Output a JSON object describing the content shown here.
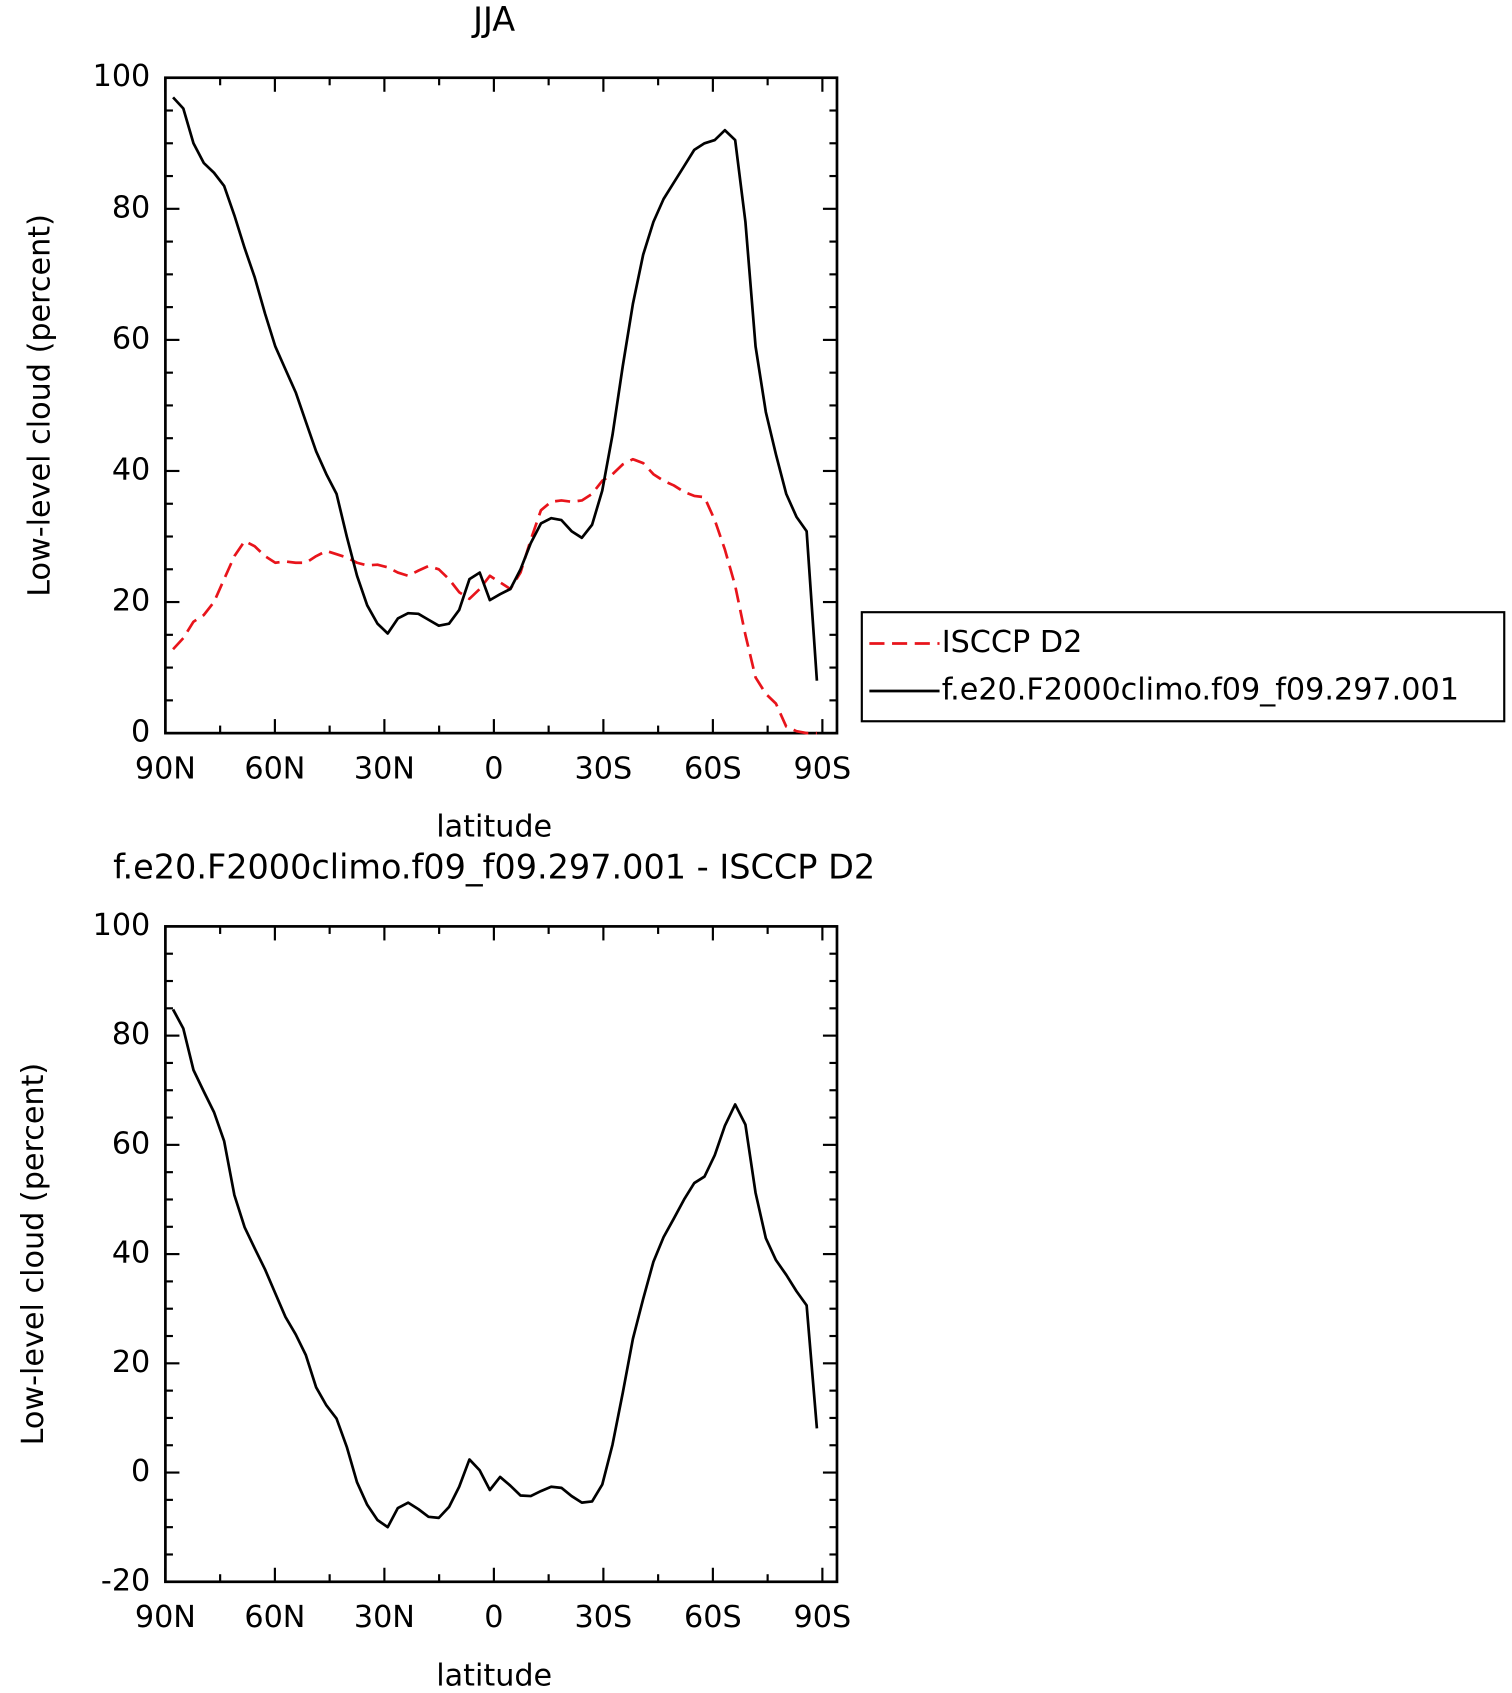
{
  "chart_data": [
    {
      "type": "line",
      "title": "JJA",
      "xlabel": "latitude",
      "ylabel": "Low-level cloud (percent)",
      "legend": "outside right",
      "x": [
        87.9,
        85.1,
        82.3,
        79.5,
        76.7,
        73.9,
        71.1,
        68.3,
        65.5,
        62.7,
        59.9,
        57.1,
        54.3,
        51.5,
        48.7,
        45.9,
        43.1,
        40.3,
        37.5,
        34.7,
        31.9,
        29.1,
        26.3,
        23.5,
        20.7,
        17.9,
        15.1,
        12.3,
        9.5,
        6.7,
        3.9,
        1.1,
        -1.7,
        -4.5,
        -7.3,
        -10.1,
        -12.9,
        -15.7,
        -18.5,
        -21.3,
        -24.1,
        -26.9,
        -29.7,
        -32.5,
        -35.3,
        -38.1,
        -40.9,
        -43.7,
        -46.5,
        -49.3,
        -52.1,
        -54.9,
        -57.7,
        -60.5,
        -63.3,
        -66.1,
        -68.9,
        -71.7,
        -74.5,
        -77.3,
        -80.1,
        -82.9,
        -85.7,
        -88.5
      ],
      "series": [
        {
          "name": "ISCCP D2",
          "color": "#e8141b",
          "line_style": "dashed",
          "values": [
            12.8,
            14.5,
            17,
            18,
            20,
            23.5,
            27,
            29.3,
            28.5,
            27,
            26,
            26.2,
            26,
            26,
            27,
            27.8,
            27.3,
            26.8,
            26,
            25.6,
            25.7,
            25.3,
            24.5,
            24,
            24.8,
            25.5,
            25,
            23.5,
            21.5,
            20.5,
            22,
            24,
            23,
            22,
            24.5,
            29.5,
            34,
            35.3,
            35.5,
            35.3,
            35.5,
            36.5,
            38.5,
            39.5,
            41,
            41.8,
            41.2,
            39.5,
            38.5,
            37.8,
            36.8,
            36.2,
            36,
            32.5,
            28,
            22.5,
            15,
            8.5,
            6,
            4.5,
            1,
            0.3,
            0,
            0
          ]
        },
        {
          "name": "f.e20.F2000climo.f09_f09.297.001",
          "color": "#000000",
          "line_style": "solid",
          "values": [
            97,
            95.3,
            90,
            87,
            85.5,
            83.5,
            79,
            74,
            69.5,
            64,
            59,
            55.5,
            52,
            47.5,
            43,
            39.5,
            36.5,
            30,
            24,
            19.5,
            16.7,
            15.2,
            17.5,
            18.3,
            18.2,
            17.3,
            16.4,
            16.7,
            18.8,
            23.5,
            24.5,
            20.3,
            21.2,
            22,
            25,
            29,
            32,
            32.8,
            32.5,
            30.8,
            29.8,
            31.8,
            37,
            45.5,
            56,
            65.5,
            73,
            78,
            81.5,
            84,
            86.5,
            89,
            90,
            90.5,
            92,
            90.5,
            78,
            59,
            49,
            42.5,
            36.5,
            33,
            30.8,
            8
          ]
        }
      ],
      "xlim": [
        90,
        -94
      ],
      "xticks": [
        {
          "value": 90,
          "label": "90N"
        },
        {
          "value": 60,
          "label": "60N"
        },
        {
          "value": 30,
          "label": "30N"
        },
        0,
        {
          "value": -30,
          "label": "30S"
        },
        {
          "value": -60,
          "label": "60S"
        },
        {
          "value": -90,
          "label": "90S"
        }
      ],
      "ylim": [
        0,
        100
      ],
      "yticks": [
        0,
        20,
        40,
        60,
        80,
        100
      ]
    },
    {
      "type": "line",
      "title": "f.e20.F2000climo.f09_f09.297.001 - ISCCP D2",
      "xlabel": "latitude",
      "ylabel": "Low-level cloud (percent)",
      "x": [
        87.9,
        85.1,
        82.3,
        79.5,
        76.7,
        73.9,
        71.1,
        68.3,
        65.5,
        62.7,
        59.9,
        57.1,
        54.3,
        51.5,
        48.7,
        45.9,
        43.1,
        40.3,
        37.5,
        34.7,
        31.9,
        29.1,
        26.3,
        23.5,
        20.7,
        17.9,
        15.1,
        12.3,
        9.5,
        6.7,
        3.9,
        1.1,
        -1.7,
        -4.5,
        -7.3,
        -10.1,
        -12.9,
        -15.7,
        -18.5,
        -21.3,
        -24.1,
        -26.9,
        -29.7,
        -32.5,
        -35.3,
        -38.1,
        -40.9,
        -43.7,
        -46.5,
        -49.3,
        -52.1,
        -54.9,
        -57.7,
        -60.5,
        -63.3,
        -66.1,
        -68.9,
        -71.7,
        -74.5,
        -77.3,
        -80.1,
        -82.9,
        -85.7,
        -88.5
      ],
      "series": [
        {
          "color": "#000000",
          "line_style": "solid",
          "values": [
            84.8,
            81.3,
            73.7,
            69.8,
            66,
            60.7,
            50.8,
            44.9,
            41,
            37.2,
            32.8,
            28.5,
            25.3,
            21.5,
            15.6,
            12.3,
            9.9,
            4.7,
            -1.8,
            -5.9,
            -8.7,
            -10,
            -6.5,
            -5.5,
            -6.7,
            -8.1,
            -8.3,
            -6.3,
            -2.6,
            2.4,
            0.4,
            -3.2,
            -0.8,
            -2.4,
            -4.2,
            -4.3,
            -3.4,
            -2.6,
            -2.8,
            -4.3,
            -5.5,
            -5.3,
            -2.2,
            5.1,
            14.6,
            24.5,
            31.8,
            38.6,
            43.1,
            46.5,
            50,
            53,
            54.2,
            58.1,
            63.5,
            67.4,
            63.7,
            51.2,
            42.9,
            38.9,
            36.2,
            33.2,
            30.6,
            8.1
          ]
        }
      ],
      "xlim": [
        90,
        -94
      ],
      "xticks": [
        {
          "value": 90,
          "label": "90N"
        },
        {
          "value": 60,
          "label": "60N"
        },
        {
          "value": 30,
          "label": "30N"
        },
        0,
        {
          "value": -30,
          "label": "30S"
        },
        {
          "value": -60,
          "label": "60S"
        },
        {
          "value": -90,
          "label": "90S"
        }
      ],
      "ylim": [
        -20,
        100
      ],
      "yticks": [
        -20,
        0,
        20,
        40,
        60,
        80,
        100
      ]
    }
  ]
}
